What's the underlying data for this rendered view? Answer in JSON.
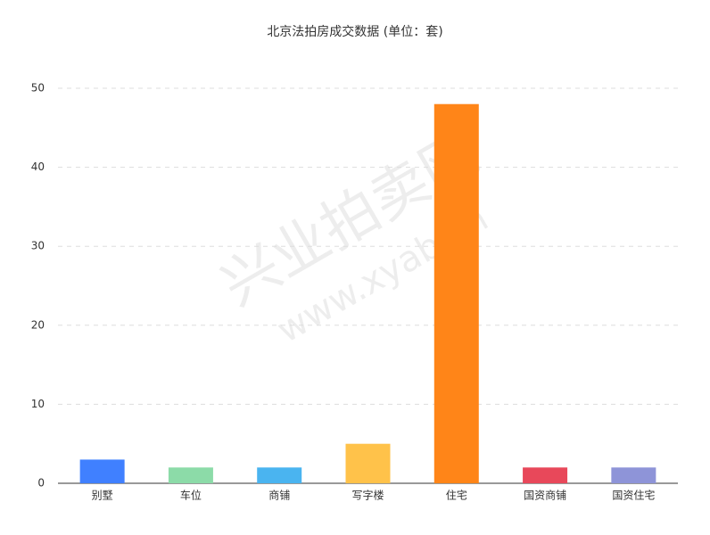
{
  "chart_data": {
    "type": "bar",
    "title": "北京法拍房成交数据 (单位：套)",
    "categories": [
      "别墅",
      "车位",
      "商铺",
      "写字楼",
      "住宅",
      "国资商铺",
      "国资住宅"
    ],
    "values": [
      3,
      2,
      2,
      5,
      48,
      2,
      2
    ],
    "colors": [
      "#4080ff",
      "#8cdba8",
      "#4ab4f0",
      "#ffc24a",
      "#ff8518",
      "#e8485a",
      "#8e94d8"
    ],
    "ylim": [
      0,
      50
    ],
    "yticks": [
      0,
      10,
      20,
      30,
      40,
      50
    ],
    "grid": true,
    "watermark": {
      "text": "兴业拍卖网",
      "url": "www.xyab.cn"
    }
  }
}
